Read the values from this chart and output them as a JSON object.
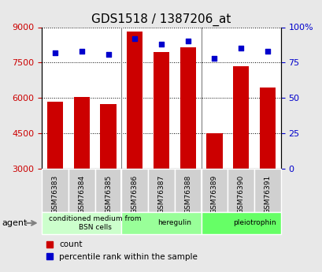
{
  "title": "GDS1518 / 1387206_at",
  "samples": [
    "GSM76383",
    "GSM76384",
    "GSM76385",
    "GSM76386",
    "GSM76387",
    "GSM76388",
    "GSM76389",
    "GSM76390",
    "GSM76391"
  ],
  "counts": [
    5850,
    6050,
    5750,
    8820,
    7950,
    8150,
    4500,
    7350,
    6450
  ],
  "percentiles": [
    82,
    83,
    81,
    92,
    88,
    90,
    78,
    85,
    83
  ],
  "ylim_left": [
    3000,
    9000
  ],
  "ylim_right": [
    0,
    100
  ],
  "yticks_left": [
    3000,
    4500,
    6000,
    7500,
    9000
  ],
  "yticks_right": [
    0,
    25,
    50,
    75,
    100
  ],
  "bar_color": "#cc0000",
  "dot_color": "#0000cc",
  "bar_bottom": 3000,
  "groups": [
    {
      "label": "conditioned medium from\nBSN cells",
      "start": 0,
      "end": 3,
      "color": "#ccffcc"
    },
    {
      "label": "heregulin",
      "start": 3,
      "end": 6,
      "color": "#99ff99"
    },
    {
      "label": "pleiotrophin",
      "start": 6,
      "end": 9,
      "color": "#66ff66"
    }
  ],
  "legend_count_label": "count",
  "legend_pct_label": "percentile rank within the sample",
  "agent_label": "agent",
  "background_color": "#e8e8e8",
  "plot_bg_color": "#ffffff",
  "title_fontsize": 11,
  "tick_fontsize": 8,
  "label_fontsize": 8
}
